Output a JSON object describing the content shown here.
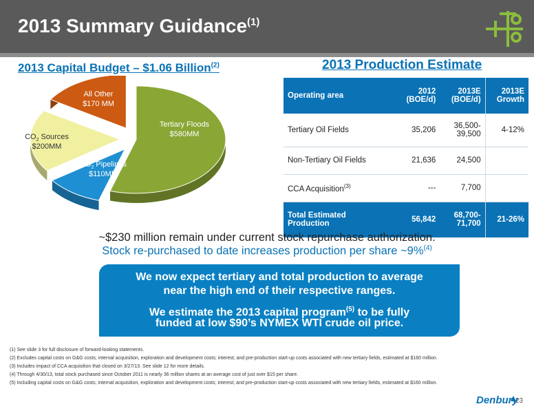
{
  "slide": {
    "title": "2013 Summary Guidance",
    "title_sup": "(1)",
    "page_number": "23",
    "brand": "Denbury"
  },
  "capital_budget": {
    "heading": "2013 Capital Budget – $1.06 Billion",
    "heading_sup": "(2)"
  },
  "chart_data": {
    "type": "pie",
    "title": "2013 Capital Budget – $1.06 Billion",
    "slices": [
      {
        "label": "Tertiary Floods",
        "value_label": "$580MM",
        "value": 580,
        "color": "#8aa635"
      },
      {
        "label": "CO2 Pipelines",
        "value_label": "$110MM",
        "value": 110,
        "color": "#1e8fd2"
      },
      {
        "label": "CO2 Sources",
        "value_label": "$200MM",
        "value": 200,
        "color": "#f0f0a0"
      },
      {
        "label": "All Other",
        "value_label": "$170 MM",
        "value": 170,
        "color": "#cc5a12"
      }
    ]
  },
  "production": {
    "heading": "2013 Production Estimate",
    "columns": {
      "area": "Operating area",
      "y2012_a": "2012",
      "y2012_b": "(BOE/d)",
      "y2013_a": "2013E",
      "y2013_b": "(BOE/d)",
      "growth_a": "2013E",
      "growth_b": "Growth"
    },
    "rows": [
      {
        "area": "Tertiary Oil Fields",
        "v2012": "35,206",
        "v2013_a": "36,500-",
        "v2013_b": "39,500",
        "growth": "4-12%"
      },
      {
        "area": "Non-Tertiary Oil Fields",
        "v2012": "21,636",
        "v2013": "24,500",
        "growth": ""
      },
      {
        "area": "CCA  Acquisition",
        "area_sup": "(3)",
        "v2012": "---",
        "v2013": "7,700",
        "growth": ""
      }
    ],
    "total": {
      "area_a": "Total Estimated",
      "area_b": "Production",
      "v2012": "56,842",
      "v2013_a": "68,700-",
      "v2013_b": "71,700",
      "growth": "21-26%"
    }
  },
  "statements": {
    "line1": "~$230 million remain under current stock repurchase authorization.",
    "line2": "Stock re-purchased to date increases production per share ~9%",
    "line2_sup": "(4)"
  },
  "banner": {
    "p1_a": "We now expect tertiary and total production to average",
    "p1_b": "near the high end of their respective ranges.",
    "p2_a_pre": "We estimate the 2013 capital program",
    "p2_a_sup": "(5)",
    "p2_a_post": " to be fully",
    "p2_b": "funded at low $90’s NYMEX WTI crude oil price."
  },
  "footnotes": [
    "(1)  See slide 3 for full disclosure of forward-looking statements.",
    "(2)  Excludes capital costs on G&G costs; internal acquisition, exploration and development costs; interest; and pre-production start-up costs associated with new tertiary fields, estimated at $160 million.",
    "(3)  Includes impact of CCA acquisition that closed on 3/27/13.  See slide 12 for more details.",
    "(4)  Through 4/30/13, total stock purchased since October 2011 is nearly 36 million shares at an average cost of just over $15 per share.",
    "(5)  Including capital costs on G&G costs; internal acquisition, exploration and development costs; interest; and pre-production start-up costs associated with new tertiary fields, estimated at $160 million."
  ],
  "colors": {
    "header_bg": "#5a5a5a",
    "accent_blue": "#0a72b5",
    "banner_blue": "#0a80c3",
    "logo_green": "#8bbd3c"
  },
  "icons": {
    "logo": "oil-wellhead-logo-icon",
    "brand_dot": "brand-mark-icon"
  }
}
